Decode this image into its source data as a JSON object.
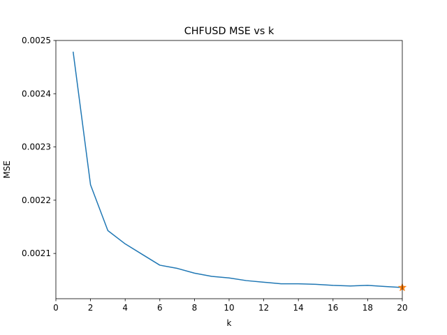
{
  "chart_data": {
    "type": "line",
    "title": "CHFUSD MSE vs k",
    "xlabel": "k",
    "ylabel": "MSE",
    "xlim": [
      0,
      20
    ],
    "ylim": [
      0.002015,
      0.0025
    ],
    "x_ticks": [
      0,
      2,
      4,
      6,
      8,
      10,
      12,
      14,
      16,
      18,
      20
    ],
    "x_tick_labels": [
      "0",
      "2",
      "4",
      "6",
      "8",
      "10",
      "12",
      "14",
      "16",
      "18",
      "20"
    ],
    "y_ticks": [
      0.0021,
      0.0022,
      0.0023,
      0.0024,
      0.0025
    ],
    "y_tick_labels": [
      "0.0021",
      "0.0022",
      "0.0023",
      "0.0024",
      "0.0025"
    ],
    "grid": false,
    "series": [
      {
        "color": "#1f77b4",
        "x": [
          1,
          2,
          3,
          4,
          5,
          6,
          7,
          8,
          9,
          10,
          11,
          12,
          13,
          14,
          15,
          16,
          17,
          18,
          19,
          20
        ],
        "values": [
          0.002478,
          0.002229,
          0.002143,
          0.002118,
          0.002098,
          0.002078,
          0.002072,
          0.002063,
          0.002057,
          0.002054,
          0.002049,
          0.002046,
          0.002043,
          0.002043,
          0.002042,
          0.00204,
          0.002039,
          0.00204,
          0.002038,
          0.002036
        ]
      }
    ],
    "markers": [
      {
        "color": "#ff7f0e",
        "shape": "star",
        "x": 20,
        "y": 0.002036
      }
    ]
  }
}
